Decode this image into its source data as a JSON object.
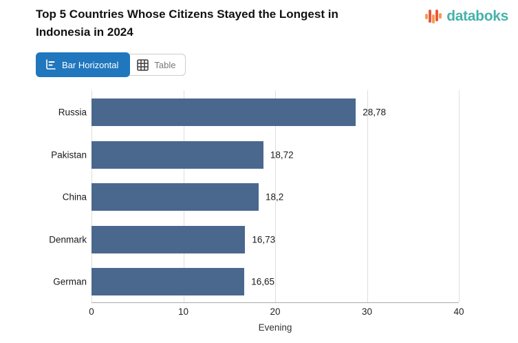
{
  "header": {
    "title": "Top 5 Countries Whose Citizens Stayed the Longest in Indonesia in 2024",
    "logo_text": "databoks"
  },
  "toolbar": {
    "bar_button_label": "Bar Horizontal",
    "table_button_label": "Table"
  },
  "chart_data": {
    "type": "bar",
    "orientation": "horizontal",
    "title": "Top 5 Countries Whose Citizens Stayed the Longest in Indonesia in 2024",
    "categories": [
      "Russia",
      "Pakistan",
      "China",
      "Denmark",
      "German"
    ],
    "values": [
      28.78,
      18.72,
      18.2,
      16.73,
      16.65
    ],
    "value_labels": [
      "28,78",
      "18,72",
      "18,2",
      "16,73",
      "16,65"
    ],
    "xlabel": "Evening",
    "xlim": [
      0,
      40
    ],
    "xticks": [
      0,
      10,
      20,
      30,
      40
    ],
    "grid": true,
    "legend": false,
    "bar_color": "#4a688e"
  },
  "colors": {
    "bar": "#4a688e",
    "active_button_bg": "#2177bd",
    "active_button_text": "#ffffff",
    "inactive_button_text": "#777777",
    "logo_text": "#45b2a8",
    "logo_orange": "#f59b4b",
    "logo_red": "#e8573f",
    "gridline": "#dedede",
    "axis_line": "#a9a9a9"
  }
}
